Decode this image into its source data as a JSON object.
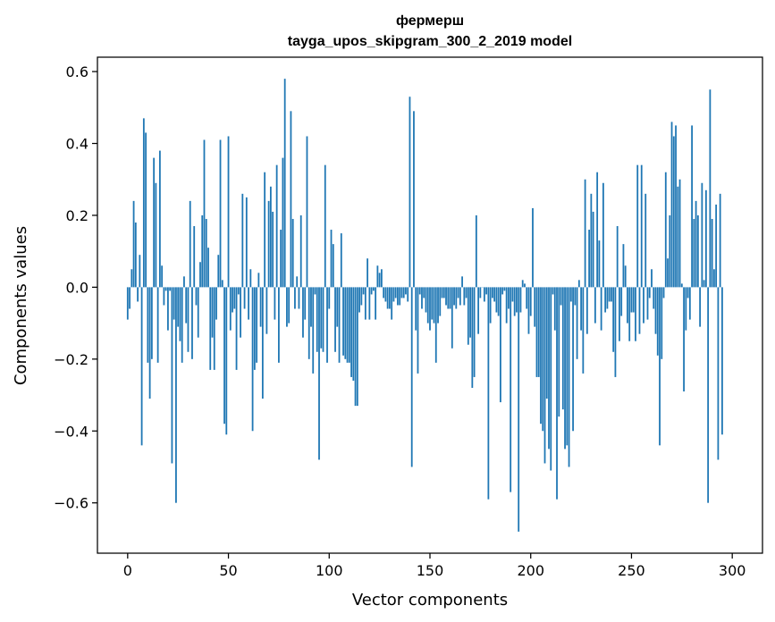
{
  "chart_data": {
    "type": "bar",
    "title": "фермерш",
    "subtitle": "tayga_upos_skipgram_300_2_2019 model",
    "xlabel": "Vector components",
    "ylabel": "Components values",
    "xlim": [
      -15,
      315
    ],
    "ylim": [
      -0.74,
      0.64
    ],
    "x_ticks": [
      0,
      50,
      100,
      150,
      200,
      250,
      300
    ],
    "x_tick_labels": [
      "0",
      "50",
      "100",
      "150",
      "200",
      "250",
      "300"
    ],
    "y_ticks": [
      -0.6,
      -0.4,
      -0.2,
      0.0,
      0.2,
      0.4,
      0.6
    ],
    "y_tick_labels": [
      "−0.6",
      "−0.4",
      "−0.2",
      "0.0",
      "0.2",
      "0.4",
      "0.6"
    ],
    "bar_color": "#1f77b4",
    "grid": false,
    "x_start": 0,
    "values": [
      -0.09,
      -0.06,
      0.05,
      0.24,
      0.18,
      -0.04,
      0.09,
      -0.44,
      0.47,
      0.43,
      -0.21,
      -0.31,
      -0.2,
      0.36,
      0.29,
      -0.21,
      0.38,
      0.06,
      -0.05,
      -0.01,
      -0.12,
      -0.01,
      -0.49,
      -0.09,
      -0.6,
      -0.11,
      -0.15,
      -0.21,
      0.03,
      -0.1,
      -0.18,
      0.24,
      -0.2,
      0.17,
      -0.05,
      -0.14,
      0.07,
      0.2,
      0.41,
      0.19,
      0.11,
      -0.23,
      -0.14,
      -0.23,
      -0.09,
      0.09,
      0.41,
      0.02,
      -0.38,
      -0.41,
      0.42,
      -0.12,
      -0.07,
      -0.06,
      -0.23,
      -0.02,
      -0.14,
      0.26,
      -0.06,
      0.25,
      -0.09,
      0.05,
      -0.4,
      -0.23,
      -0.21,
      0.04,
      -0.11,
      -0.31,
      0.32,
      -0.13,
      0.24,
      0.28,
      0.21,
      -0.09,
      0.34,
      -0.21,
      0.16,
      0.36,
      0.58,
      -0.11,
      -0.1,
      0.49,
      0.19,
      -0.06,
      0.03,
      -0.06,
      0.2,
      -0.14,
      -0.09,
      0.42,
      -0.2,
      -0.11,
      -0.24,
      -0.02,
      -0.18,
      -0.48,
      -0.17,
      -0.18,
      0.34,
      -0.21,
      -0.06,
      0.16,
      0.12,
      -0.18,
      -0.11,
      -0.21,
      0.15,
      -0.19,
      -0.2,
      -0.21,
      -0.21,
      -0.25,
      -0.26,
      -0.33,
      -0.33,
      -0.07,
      -0.05,
      -0.02,
      -0.09,
      0.08,
      -0.09,
      -0.02,
      -0.01,
      -0.09,
      0.06,
      0.04,
      0.05,
      -0.03,
      -0.04,
      -0.06,
      -0.06,
      -0.09,
      -0.04,
      -0.03,
      -0.05,
      -0.05,
      -0.03,
      -0.03,
      -0.02,
      -0.04,
      0.53,
      -0.5,
      0.49,
      -0.12,
      -0.24,
      -0.02,
      -0.06,
      -0.03,
      -0.07,
      -0.1,
      -0.12,
      -0.09,
      -0.1,
      -0.21,
      -0.1,
      -0.08,
      -0.03,
      -0.03,
      -0.05,
      -0.06,
      -0.06,
      -0.17,
      -0.05,
      -0.06,
      -0.03,
      -0.05,
      0.03,
      -0.05,
      -0.03,
      -0.16,
      -0.14,
      -0.28,
      -0.25,
      0.2,
      -0.13,
      -0.03,
      0.0,
      -0.04,
      -0.02,
      -0.59,
      -0.1,
      -0.03,
      -0.04,
      -0.07,
      -0.08,
      -0.32,
      -0.02,
      -0.01,
      -0.1,
      -0.06,
      -0.57,
      -0.04,
      -0.08,
      -0.07,
      -0.68,
      -0.07,
      0.02,
      0.01,
      -0.06,
      -0.13,
      -0.08,
      0.22,
      -0.11,
      -0.25,
      -0.25,
      -0.38,
      -0.4,
      -0.49,
      -0.31,
      -0.45,
      -0.51,
      -0.02,
      -0.12,
      -0.59,
      -0.36,
      -0.05,
      -0.34,
      -0.45,
      -0.44,
      -0.5,
      -0.04,
      -0.4,
      -0.05,
      -0.2,
      0.02,
      -0.12,
      -0.24,
      0.3,
      -0.13,
      0.16,
      0.26,
      0.21,
      -0.1,
      0.32,
      0.13,
      -0.12,
      0.29,
      -0.07,
      -0.06,
      -0.04,
      -0.04,
      -0.18,
      -0.25,
      0.17,
      -0.15,
      -0.08,
      0.12,
      0.06,
      -0.1,
      -0.15,
      -0.07,
      -0.07,
      -0.15,
      0.34,
      -0.13,
      0.34,
      -0.1,
      0.26,
      -0.09,
      -0.03,
      0.05,
      -0.06,
      -0.13,
      -0.19,
      -0.44,
      -0.2,
      -0.03,
      0.32,
      0.08,
      0.2,
      0.46,
      0.42,
      0.45,
      0.28,
      0.3,
      0.01,
      -0.29,
      -0.12,
      -0.03,
      -0.09,
      0.45,
      0.19,
      0.24,
      0.2,
      -0.11,
      0.29,
      0.02,
      0.27,
      -0.6,
      0.55,
      0.19,
      0.05,
      0.23,
      -0.48,
      0.26,
      -0.41
    ]
  }
}
